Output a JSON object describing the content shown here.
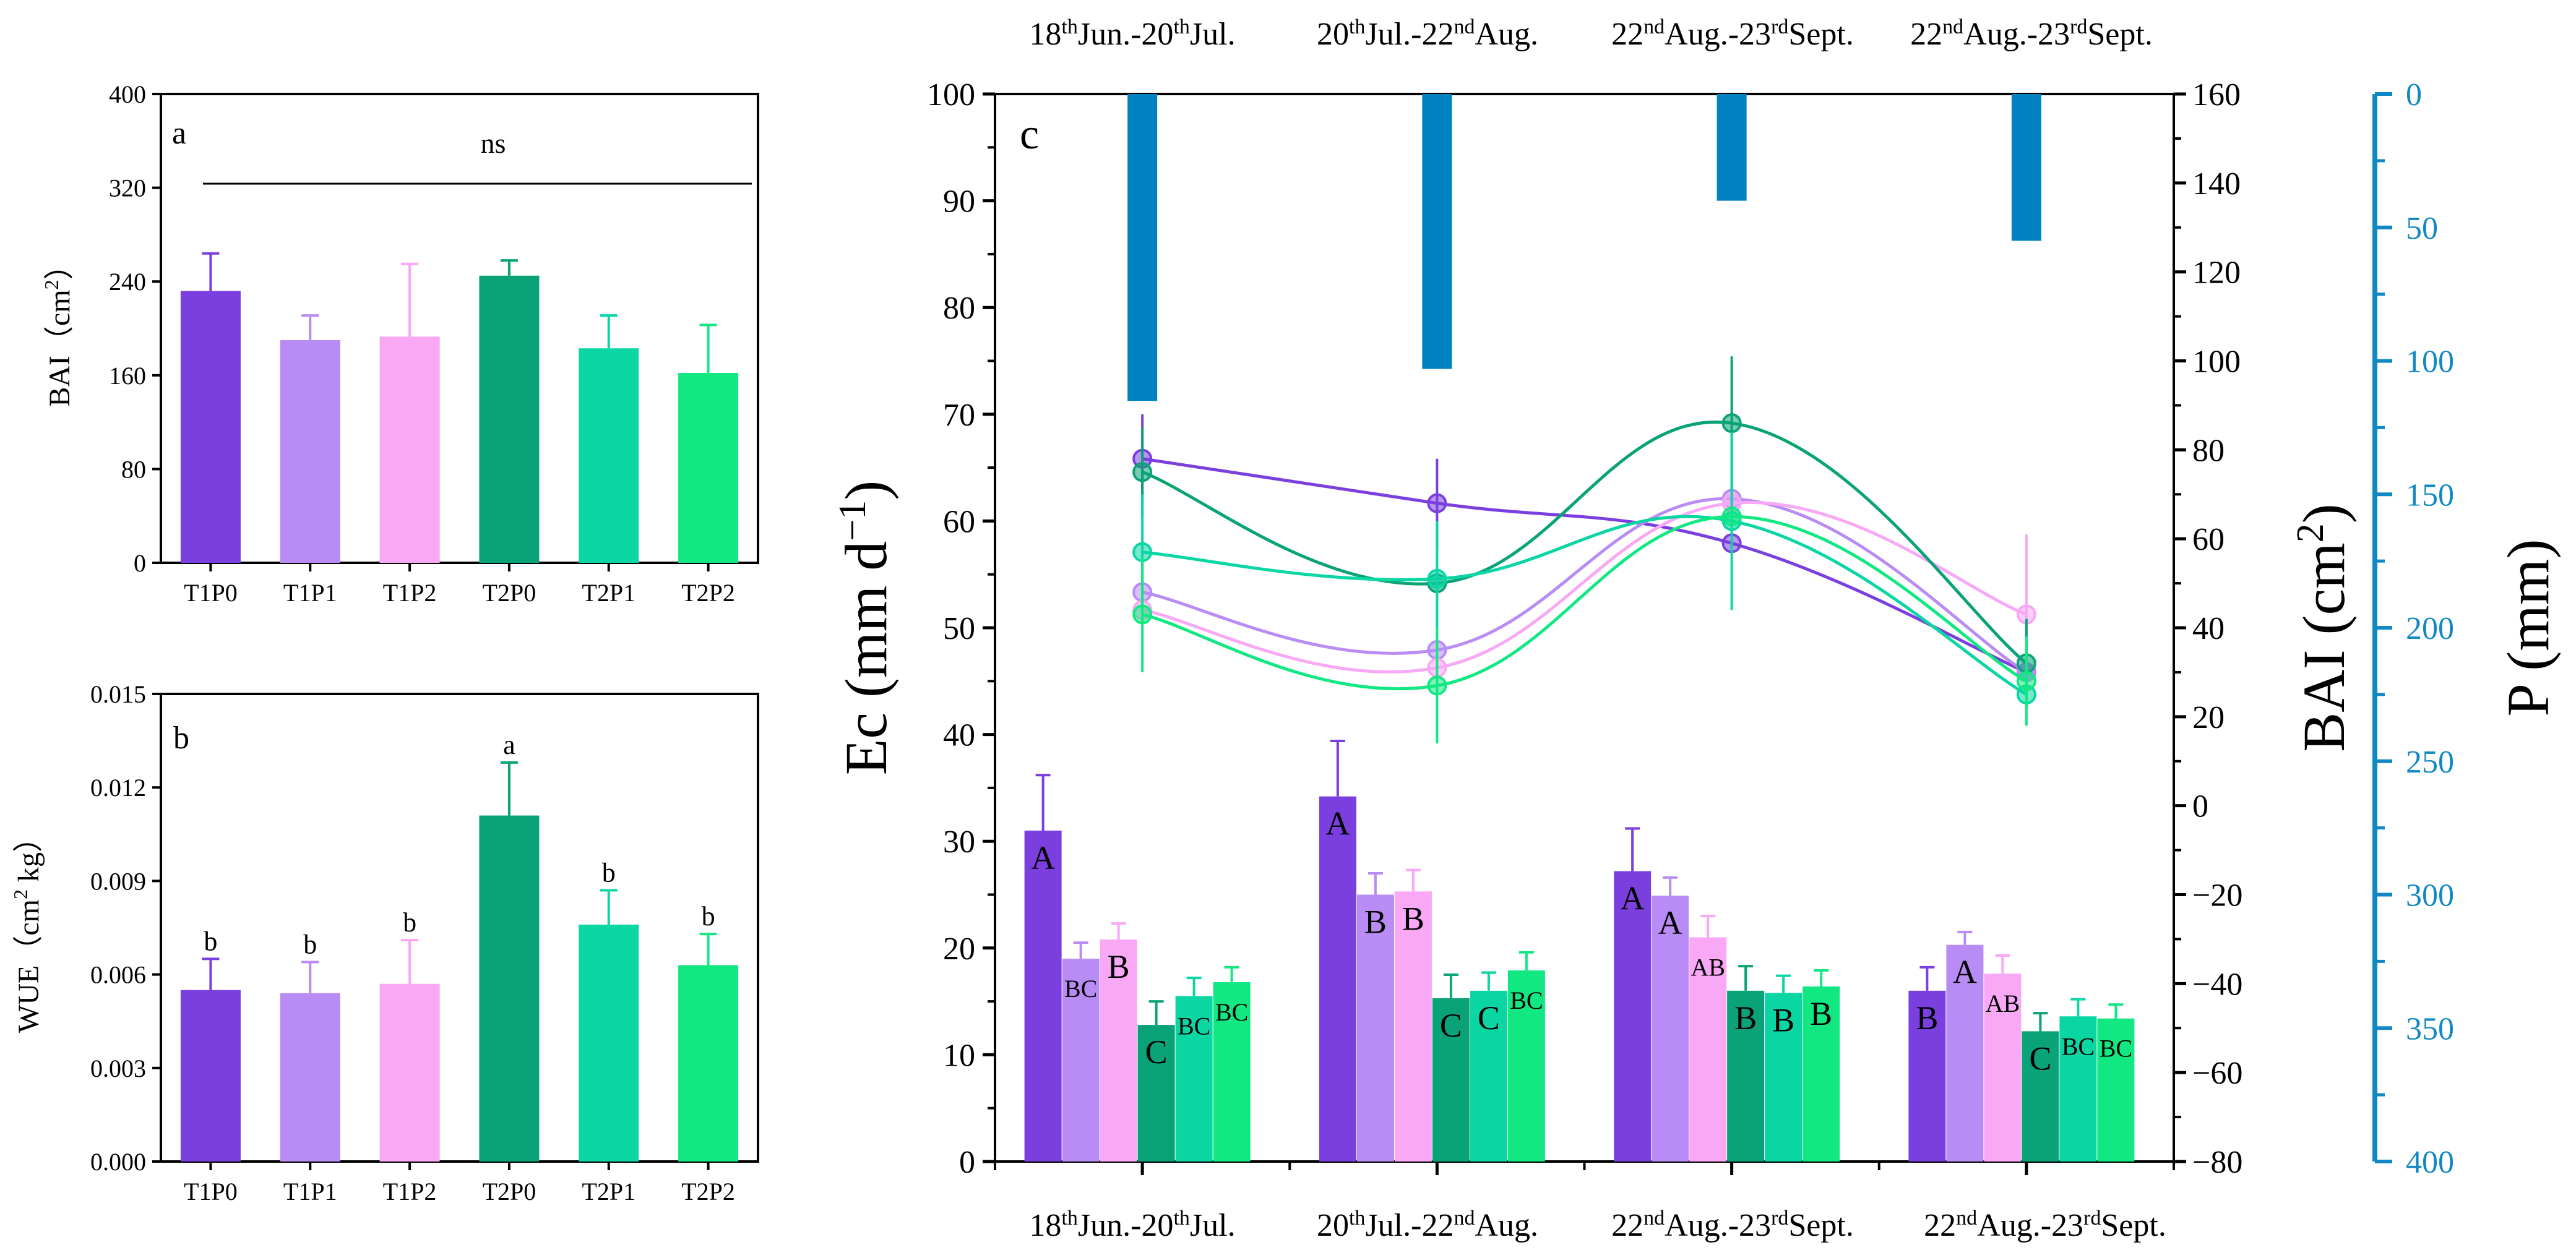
{
  "colors": {
    "T1P0": "#7b3fe0",
    "T1P1": "#b98cf5",
    "T1P2": "#f8a8f5",
    "T2P0": "#0aa377",
    "T2P1": "#0ad6a4",
    "T2P2": "#12e882",
    "precip": "#0081c1",
    "axis_blue": "#1188c4"
  },
  "chart_data": [
    {
      "panel": "a",
      "type": "bar",
      "categories": [
        "T1P0",
        "T1P1",
        "T1P2",
        "T2P0",
        "T2P1",
        "T2P2"
      ],
      "values": [
        232,
        190,
        193,
        245,
        183,
        162
      ],
      "errors": [
        32,
        21,
        62,
        13,
        28,
        41
      ],
      "ylabel": "BAI（cm²）",
      "ylabel_parts": {
        "main": "BAI（cm",
        "sup": "2",
        "end": "）"
      },
      "ylim": [
        0,
        400
      ],
      "yticks": [
        "0",
        "80",
        "160",
        "240",
        "320",
        "400"
      ],
      "annotation": "ns",
      "panel_label": "a"
    },
    {
      "panel": "b",
      "type": "bar",
      "categories": [
        "T1P0",
        "T1P1",
        "T1P2",
        "T2P0",
        "T2P1",
        "T2P2"
      ],
      "values": [
        0.0055,
        0.0054,
        0.0057,
        0.0111,
        0.0076,
        0.0063
      ],
      "errors": [
        0.001,
        0.001,
        0.0014,
        0.0017,
        0.0011,
        0.001
      ],
      "letters": [
        "b",
        "b",
        "b",
        "a",
        "b",
        "b"
      ],
      "ylabel": "WUE（cm² kg）",
      "ylabel_parts": {
        "main": "WUE（cm",
        "sup": "2",
        "end": " kg）"
      },
      "ylim": [
        0,
        0.015
      ],
      "yticks": [
        "0.000",
        "0.003",
        "0.006",
        "0.009",
        "0.012",
        "0.015"
      ],
      "panel_label": "b"
    },
    {
      "panel": "c",
      "type": "combo",
      "panel_label": "c",
      "periods": [
        {
          "main": "18",
          "sup1": "th",
          "mid": "Jun.-20",
          "sup2": "th",
          "end": "Jul."
        },
        {
          "main": "20",
          "sup1": "th",
          "mid": "Jul.-22",
          "sup2": "nd",
          "end": "Aug."
        },
        {
          "main": "22",
          "sup1": "nd",
          "mid": "Aug.-23",
          "sup2": "rd",
          "end": "Sept."
        },
        {
          "main": "22",
          "sup1": "nd",
          "mid": "Aug.-23",
          "sup2": "rd",
          "end": "Sept."
        }
      ],
      "series_names": [
        "T1P0",
        "T1P1",
        "T1P2",
        "T2P0",
        "T2P1",
        "T2P2"
      ],
      "ec_bars": {
        "axis": "Ec (mm d⁻¹)",
        "ylabel_parts": {
          "main": "Ec (mm d",
          "sup": "−1",
          "end": ")"
        },
        "ylim": [
          0,
          100
        ],
        "yticks": [
          "0",
          "10",
          "20",
          "30",
          "40",
          "50",
          "60",
          "70",
          "80",
          "90",
          "100"
        ],
        "values": [
          [
            31.0,
            19.0,
            20.8,
            12.8,
            15.5,
            16.8
          ],
          [
            34.2,
            25.0,
            25.3,
            15.3,
            16.0,
            17.9
          ],
          [
            27.2,
            24.9,
            21.0,
            16.0,
            15.8,
            16.4
          ],
          [
            16.0,
            20.3,
            17.6,
            12.2,
            13.6,
            13.4
          ]
        ],
        "errors": [
          [
            5.2,
            1.5,
            1.5,
            2.2,
            1.7,
            1.4
          ],
          [
            5.2,
            2.0,
            2.0,
            2.2,
            1.7,
            1.7
          ],
          [
            4.0,
            1.7,
            2.0,
            2.3,
            1.6,
            1.5
          ],
          [
            2.2,
            1.2,
            1.7,
            1.7,
            1.6,
            1.3
          ]
        ],
        "letters": [
          [
            "A",
            "BC",
            "B",
            "C",
            "BC",
            "BC"
          ],
          [
            "A",
            "B",
            "B",
            "C",
            "C",
            "BC"
          ],
          [
            "A",
            "A",
            "AB",
            "B",
            "B",
            "B"
          ],
          [
            "B",
            "A",
            "AB",
            "C",
            "BC",
            "BC"
          ]
        ]
      },
      "bai_lines": {
        "axis": "BAI (cm²)",
        "ylabel_parts": {
          "main": "BAI (cm",
          "sup": "2",
          "end": ")"
        },
        "ylim": [
          -80,
          160
        ],
        "yticks": [
          "−80",
          "−60",
          "−40",
          "−20",
          "0",
          "20",
          "40",
          "60",
          "80",
          "100",
          "120",
          "140",
          "160"
        ],
        "values": [
          [
            78,
            68,
            59,
            30
          ],
          [
            48,
            35,
            69,
            30
          ],
          [
            44,
            31,
            68,
            43
          ],
          [
            75,
            50,
            86,
            32
          ],
          [
            57,
            51,
            64,
            25
          ],
          [
            43,
            27,
            65,
            28
          ]
        ],
        "errors": [
          [
            10,
            10,
            0,
            0
          ],
          [
            0,
            0,
            0,
            0
          ],
          [
            0,
            0,
            0,
            18
          ],
          [
            10,
            0,
            15,
            10
          ],
          [
            13,
            13,
            20,
            0
          ],
          [
            13,
            13,
            0,
            10
          ]
        ]
      },
      "precip_bars": {
        "axis": "P (mm)",
        "ylim": [
          0,
          400
        ],
        "inverted": true,
        "yticks": [
          "0",
          "50",
          "100",
          "150",
          "200",
          "250",
          "300",
          "350",
          "400"
        ],
        "values": [
          115,
          103,
          40,
          55
        ]
      }
    }
  ]
}
